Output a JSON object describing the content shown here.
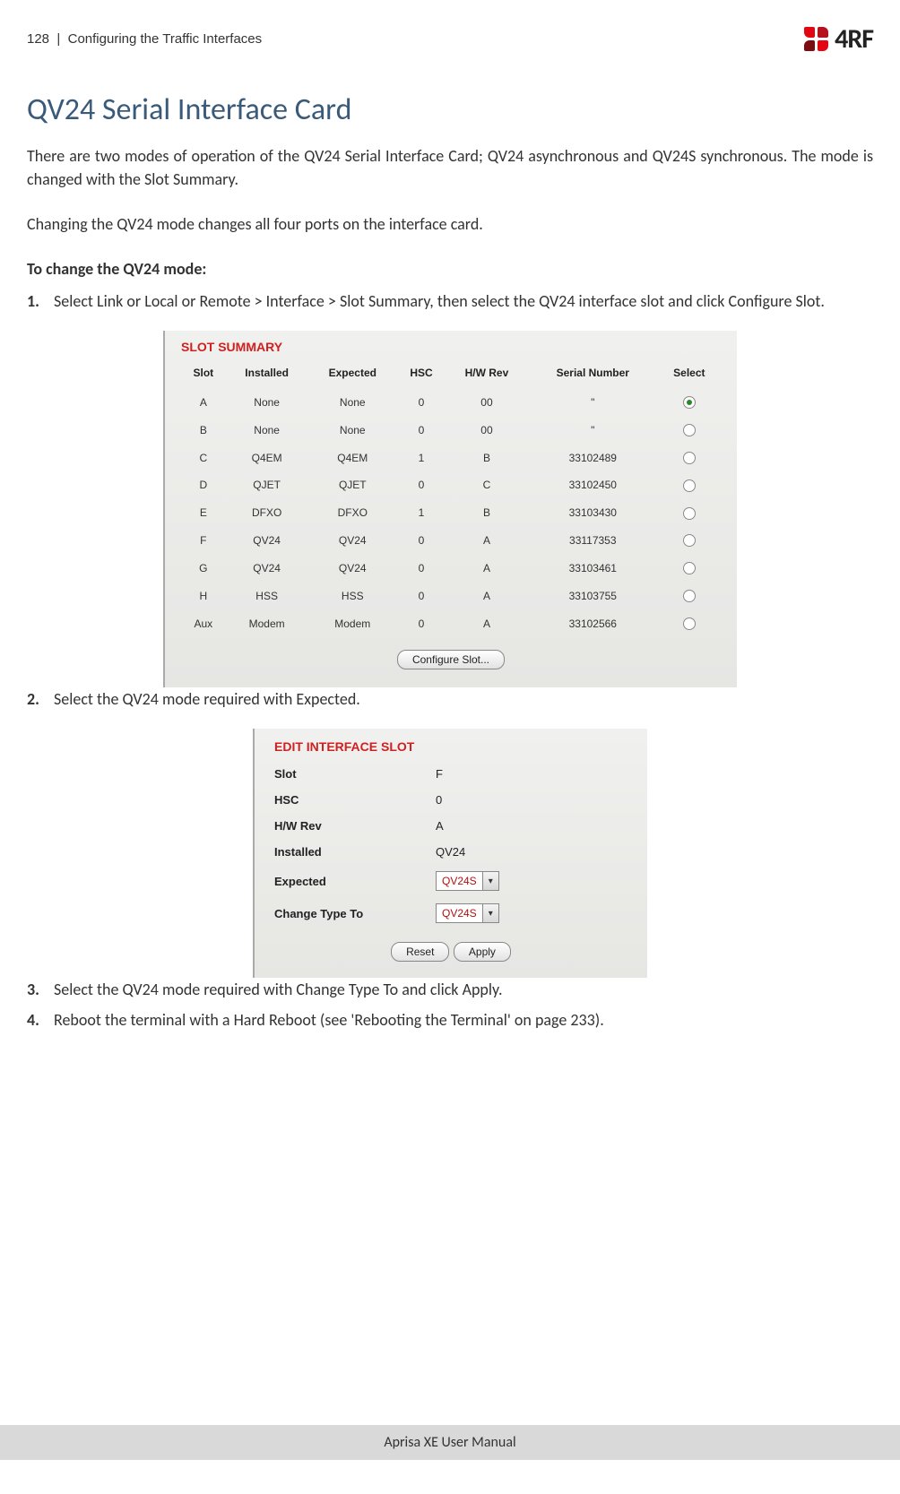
{
  "header": {
    "page_number": "128",
    "separator": "|",
    "section": "Configuring the Traffic Interfaces",
    "logo_text": "4RF"
  },
  "title": "QV24 Serial Interface Card",
  "intro": "There are two modes of operation of the QV24 Serial Interface Card; QV24 asynchronous and QV24S synchronous. The mode is changed with the Slot Summary.",
  "note": "Changing the QV24 mode changes all four ports on the interface card.",
  "procedure_label": "To change the QV24 mode:",
  "steps": {
    "s1": "Select Link or Local or Remote > Interface > Slot Summary, then select the QV24 interface slot and click Configure Slot.",
    "s2": "Select the QV24 mode required with Expected.",
    "s3": "Select the QV24 mode required with Change Type To and click Apply.",
    "s4": "Reboot the terminal with a Hard Reboot (see 'Rebooting the Terminal' on page 233)."
  },
  "slot_summary": {
    "title": "SLOT SUMMARY",
    "columns": [
      "Slot",
      "Installed",
      "Expected",
      "HSC",
      "H/W Rev",
      "Serial Number",
      "Select"
    ],
    "rows": [
      {
        "slot": "A",
        "installed": "None",
        "expected": "None",
        "hsc": "0",
        "hw": "00",
        "serial": "\"",
        "selected": true
      },
      {
        "slot": "B",
        "installed": "None",
        "expected": "None",
        "hsc": "0",
        "hw": "00",
        "serial": "\"",
        "selected": false
      },
      {
        "slot": "C",
        "installed": "Q4EM",
        "expected": "Q4EM",
        "hsc": "1",
        "hw": "B",
        "serial": "33102489",
        "selected": false
      },
      {
        "slot": "D",
        "installed": "QJET",
        "expected": "QJET",
        "hsc": "0",
        "hw": "C",
        "serial": "33102450",
        "selected": false
      },
      {
        "slot": "E",
        "installed": "DFXO",
        "expected": "DFXO",
        "hsc": "1",
        "hw": "B",
        "serial": "33103430",
        "selected": false
      },
      {
        "slot": "F",
        "installed": "QV24",
        "expected": "QV24",
        "hsc": "0",
        "hw": "A",
        "serial": "33117353",
        "selected": false
      },
      {
        "slot": "G",
        "installed": "QV24",
        "expected": "QV24",
        "hsc": "0",
        "hw": "A",
        "serial": "33103461",
        "selected": false
      },
      {
        "slot": "H",
        "installed": "HSS",
        "expected": "HSS",
        "hsc": "0",
        "hw": "A",
        "serial": "33103755",
        "selected": false
      },
      {
        "slot": "Aux",
        "installed": "Modem",
        "expected": "Modem",
        "hsc": "0",
        "hw": "A",
        "serial": "33102566",
        "selected": false
      }
    ],
    "button": "Configure Slot..."
  },
  "edit_slot": {
    "title": "EDIT INTERFACE SLOT",
    "fields": {
      "slot_label": "Slot",
      "slot_value": "F",
      "hsc_label": "HSC",
      "hsc_value": "0",
      "hw_label": "H/W Rev",
      "hw_value": "A",
      "installed_label": "Installed",
      "installed_value": "QV24",
      "expected_label": "Expected",
      "expected_value": "QV24S",
      "change_label": "Change Type To",
      "change_value": "QV24S"
    },
    "reset_btn": "Reset",
    "apply_btn": "Apply"
  },
  "footer": "Aprisa XE User Manual"
}
